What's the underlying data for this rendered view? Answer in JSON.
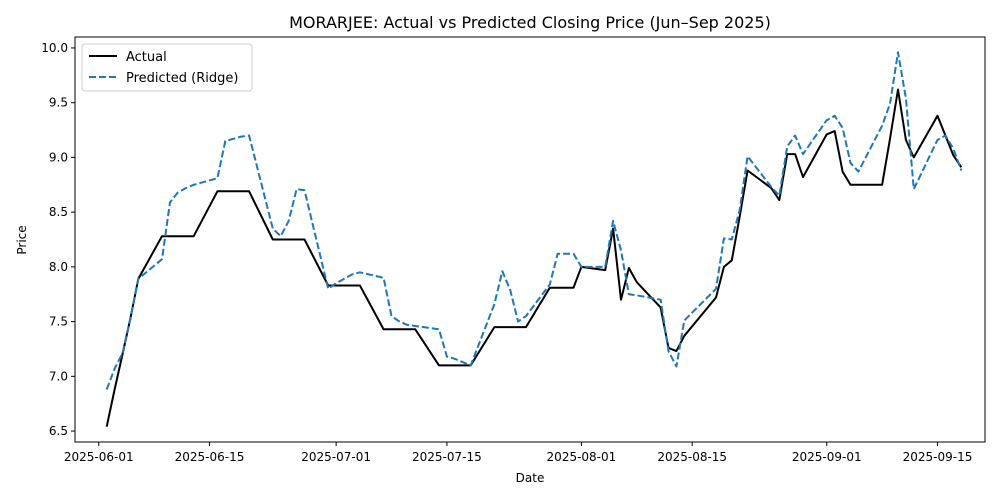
{
  "chart_data": {
    "type": "line",
    "title": "MORARJEE: Actual vs Predicted Closing Price (Jun–Sep 2025)",
    "xlabel": "Date",
    "ylabel": "Price",
    "ylim": [
      6.4,
      10.1
    ],
    "xlim": [
      "2025-05-29",
      "2025-09-21"
    ],
    "xticks": [
      "2025-06-01",
      "2025-06-15",
      "2025-07-01",
      "2025-07-15",
      "2025-08-01",
      "2025-08-15",
      "2025-09-01",
      "2025-09-15"
    ],
    "yticks": [
      "6.5",
      "7.0",
      "7.5",
      "8.0",
      "8.5",
      "9.0",
      "9.5",
      "10.0"
    ],
    "grid": false,
    "legend_position": "top-left",
    "series": [
      {
        "name": "Actual",
        "color": "#000000",
        "style": "solid",
        "points": [
          [
            "2025-06-02",
            6.54
          ],
          [
            "2025-06-03",
            6.88
          ],
          [
            "2025-06-04",
            7.2
          ],
          [
            "2025-06-05",
            7.53
          ],
          [
            "2025-06-06",
            7.89
          ],
          [
            "2025-06-09",
            8.28
          ],
          [
            "2025-06-10",
            8.28
          ],
          [
            "2025-06-11",
            8.28
          ],
          [
            "2025-06-12",
            8.28
          ],
          [
            "2025-06-13",
            8.28
          ],
          [
            "2025-06-16",
            8.69
          ],
          [
            "2025-06-17",
            8.69
          ],
          [
            "2025-06-18",
            8.69
          ],
          [
            "2025-06-19",
            8.69
          ],
          [
            "2025-06-20",
            8.69
          ],
          [
            "2025-06-23",
            8.25
          ],
          [
            "2025-06-24",
            8.25
          ],
          [
            "2025-06-25",
            8.25
          ],
          [
            "2025-06-26",
            8.25
          ],
          [
            "2025-06-27",
            8.25
          ],
          [
            "2025-06-30",
            7.83
          ],
          [
            "2025-07-01",
            7.83
          ],
          [
            "2025-07-02",
            7.83
          ],
          [
            "2025-07-03",
            7.83
          ],
          [
            "2025-07-04",
            7.83
          ],
          [
            "2025-07-07",
            7.43
          ],
          [
            "2025-07-08",
            7.43
          ],
          [
            "2025-07-09",
            7.43
          ],
          [
            "2025-07-10",
            7.43
          ],
          [
            "2025-07-11",
            7.43
          ],
          [
            "2025-07-14",
            7.1
          ],
          [
            "2025-07-15",
            7.1
          ],
          [
            "2025-07-16",
            7.1
          ],
          [
            "2025-07-17",
            7.1
          ],
          [
            "2025-07-18",
            7.1
          ],
          [
            "2025-07-21",
            7.45
          ],
          [
            "2025-07-22",
            7.45
          ],
          [
            "2025-07-23",
            7.45
          ],
          [
            "2025-07-24",
            7.45
          ],
          [
            "2025-07-25",
            7.45
          ],
          [
            "2025-07-28",
            7.81
          ],
          [
            "2025-07-29",
            7.81
          ],
          [
            "2025-07-30",
            7.81
          ],
          [
            "2025-07-31",
            7.81
          ],
          [
            "2025-08-01",
            8.0
          ],
          [
            "2025-08-04",
            7.97
          ],
          [
            "2025-08-05",
            8.35
          ],
          [
            "2025-08-06",
            7.7
          ],
          [
            "2025-08-07",
            7.99
          ],
          [
            "2025-08-08",
            7.86
          ],
          [
            "2025-08-11",
            7.63
          ],
          [
            "2025-08-12",
            7.26
          ],
          [
            "2025-08-13",
            7.23
          ],
          [
            "2025-08-14",
            7.37
          ],
          [
            "2025-08-18",
            7.72
          ],
          [
            "2025-08-19",
            8.0
          ],
          [
            "2025-08-20",
            8.06
          ],
          [
            "2025-08-21",
            8.46
          ],
          [
            "2025-08-22",
            8.88
          ],
          [
            "2025-08-25",
            8.72
          ],
          [
            "2025-08-26",
            8.61
          ],
          [
            "2025-08-27",
            9.03
          ],
          [
            "2025-08-28",
            9.03
          ],
          [
            "2025-08-29",
            8.82
          ],
          [
            "2025-09-01",
            9.21
          ],
          [
            "2025-09-02",
            9.24
          ],
          [
            "2025-09-03",
            8.87
          ],
          [
            "2025-09-04",
            8.75
          ],
          [
            "2025-09-05",
            8.75
          ],
          [
            "2025-09-08",
            8.75
          ],
          [
            "2025-09-09",
            9.17
          ],
          [
            "2025-09-10",
            9.62
          ],
          [
            "2025-09-11",
            9.16
          ],
          [
            "2025-09-12",
            9.0
          ],
          [
            "2025-09-15",
            9.38
          ],
          [
            "2025-09-16",
            9.2
          ],
          [
            "2025-09-17",
            9.02
          ],
          [
            "2025-09-18",
            8.91
          ]
        ]
      },
      {
        "name": "Predicted (Ridge)",
        "color": "#1f77b4",
        "style": "dashed",
        "points": [
          [
            "2025-06-02",
            6.88
          ],
          [
            "2025-06-03",
            7.07
          ],
          [
            "2025-06-04",
            7.21
          ],
          [
            "2025-06-05",
            7.53
          ],
          [
            "2025-06-06",
            7.89
          ],
          [
            "2025-06-09",
            8.07
          ],
          [
            "2025-06-10",
            8.59
          ],
          [
            "2025-06-11",
            8.68
          ],
          [
            "2025-06-12",
            8.72
          ],
          [
            "2025-06-13",
            8.75
          ],
          [
            "2025-06-16",
            8.81
          ],
          [
            "2025-06-17",
            9.15
          ],
          [
            "2025-06-18",
            9.17
          ],
          [
            "2025-06-19",
            9.19
          ],
          [
            "2025-06-20",
            9.2
          ],
          [
            "2025-06-23",
            8.35
          ],
          [
            "2025-06-24",
            8.28
          ],
          [
            "2025-06-25",
            8.42
          ],
          [
            "2025-06-26",
            8.71
          ],
          [
            "2025-06-27",
            8.7
          ],
          [
            "2025-06-30",
            7.8
          ],
          [
            "2025-07-01",
            7.85
          ],
          [
            "2025-07-02",
            7.89
          ],
          [
            "2025-07-03",
            7.93
          ],
          [
            "2025-07-04",
            7.95
          ],
          [
            "2025-07-07",
            7.9
          ],
          [
            "2025-07-08",
            7.55
          ],
          [
            "2025-07-09",
            7.5
          ],
          [
            "2025-07-10",
            7.47
          ],
          [
            "2025-07-11",
            7.46
          ],
          [
            "2025-07-14",
            7.43
          ],
          [
            "2025-07-15",
            7.18
          ],
          [
            "2025-07-16",
            7.16
          ],
          [
            "2025-07-17",
            7.13
          ],
          [
            "2025-07-18",
            7.1
          ],
          [
            "2025-07-21",
            7.66
          ],
          [
            "2025-07-22",
            7.96
          ],
          [
            "2025-07-23",
            7.79
          ],
          [
            "2025-07-24",
            7.5
          ],
          [
            "2025-07-25",
            7.55
          ],
          [
            "2025-07-28",
            7.84
          ],
          [
            "2025-07-29",
            8.12
          ],
          [
            "2025-07-30",
            8.12
          ],
          [
            "2025-07-31",
            8.12
          ],
          [
            "2025-08-01",
            8.0
          ],
          [
            "2025-08-04",
            8.0
          ],
          [
            "2025-08-05",
            8.42
          ],
          [
            "2025-08-06",
            8.15
          ],
          [
            "2025-08-07",
            7.75
          ],
          [
            "2025-08-08",
            7.74
          ],
          [
            "2025-08-11",
            7.7
          ],
          [
            "2025-08-12",
            7.23
          ],
          [
            "2025-08-13",
            7.09
          ],
          [
            "2025-08-14",
            7.51
          ],
          [
            "2025-08-18",
            7.8
          ],
          [
            "2025-08-19",
            8.26
          ],
          [
            "2025-08-20",
            8.25
          ],
          [
            "2025-08-21",
            8.52
          ],
          [
            "2025-08-22",
            9.01
          ],
          [
            "2025-08-25",
            8.73
          ],
          [
            "2025-08-26",
            8.65
          ],
          [
            "2025-08-27",
            9.1
          ],
          [
            "2025-08-28",
            9.2
          ],
          [
            "2025-08-29",
            9.03
          ],
          [
            "2025-09-01",
            9.34
          ],
          [
            "2025-09-02",
            9.38
          ],
          [
            "2025-09-03",
            9.27
          ],
          [
            "2025-09-04",
            8.95
          ],
          [
            "2025-09-05",
            8.87
          ],
          [
            "2025-09-08",
            9.29
          ],
          [
            "2025-09-09",
            9.49
          ],
          [
            "2025-09-10",
            9.96
          ],
          [
            "2025-09-11",
            9.54
          ],
          [
            "2025-09-12",
            8.71
          ],
          [
            "2025-09-15",
            9.16
          ],
          [
            "2025-09-16",
            9.2
          ],
          [
            "2025-09-17",
            9.08
          ],
          [
            "2025-09-18",
            8.88
          ]
        ]
      }
    ]
  }
}
